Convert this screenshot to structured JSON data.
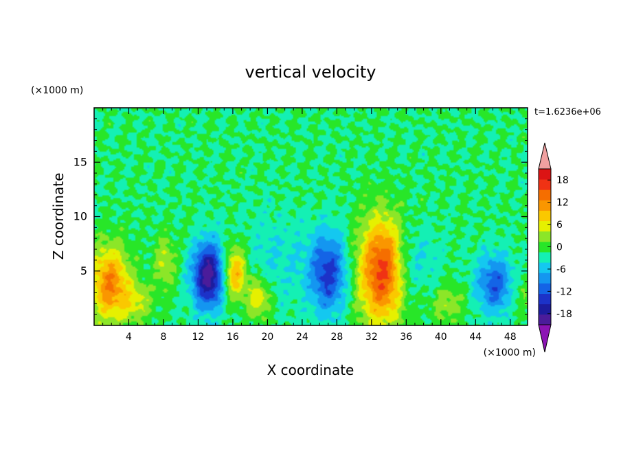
{
  "chart_data": {
    "type": "heatmap",
    "title": "vertical velocity",
    "xlabel": "X coordinate",
    "ylabel": "Z coordinate",
    "x_unit": "(×1000 m)",
    "y_unit": "(×1000 m)",
    "time_label": "t=1.6236e+06",
    "xlim": [
      0,
      50
    ],
    "ylim": [
      0,
      20
    ],
    "x_ticks": [
      4,
      8,
      12,
      16,
      20,
      24,
      28,
      32,
      36,
      40,
      44,
      48
    ],
    "x_tick_labels": [
      "4",
      "8",
      "12",
      "16",
      "20",
      "24",
      "28",
      "32",
      "36",
      "40",
      "44",
      "48"
    ],
    "y_ticks": [
      5,
      10,
      15
    ],
    "y_tick_labels": [
      "5",
      "10",
      "15"
    ],
    "colorbar": {
      "levels": [
        -21,
        -18,
        -15,
        -12,
        -9,
        -6,
        -3,
        0,
        3,
        6,
        9,
        12,
        15,
        18,
        21
      ],
      "tick_values": [
        -18,
        -12,
        -6,
        0,
        6,
        12,
        18
      ],
      "tick_labels": [
        "-18",
        "-12",
        "-6",
        "0",
        "6",
        "12",
        "18"
      ],
      "colors": [
        "#4b1c9a",
        "#1c1c9e",
        "#1c32c8",
        "#1464e6",
        "#1496f0",
        "#14c8f0",
        "#14f0b4",
        "#28e628",
        "#8ce628",
        "#e6f000",
        "#fac800",
        "#fa9600",
        "#f56e00",
        "#f03214",
        "#dc1414"
      ],
      "under_color": "#8c14b4",
      "over_color": "#f0a0a0"
    },
    "features": [
      {
        "x": 1.8,
        "z": 3.8,
        "sx": 1.6,
        "sz": 2.4,
        "amp": 15
      },
      {
        "x": 5.0,
        "z": 2.2,
        "sx": 1.3,
        "sz": 1.2,
        "amp": 6
      },
      {
        "x": 8.2,
        "z": 5.8,
        "sx": 0.9,
        "sz": 1.7,
        "amp": 6
      },
      {
        "x": 13.2,
        "z": 4.6,
        "sx": 1.3,
        "sz": 2.1,
        "amp": -20
      },
      {
        "x": 16.2,
        "z": 4.8,
        "sx": 1.0,
        "sz": 1.7,
        "amp": 13
      },
      {
        "x": 19.0,
        "z": 2.5,
        "sx": 1.0,
        "sz": 1.3,
        "amp": 9
      },
      {
        "x": 21.0,
        "z": 6.0,
        "sx": 3.0,
        "sz": 3.0,
        "amp": -3
      },
      {
        "x": 27.0,
        "z": 4.8,
        "sx": 1.5,
        "sz": 2.6,
        "amp": -13
      },
      {
        "x": 33.2,
        "z": 5.0,
        "sx": 1.9,
        "sz": 3.4,
        "amp": 19
      },
      {
        "x": 36.0,
        "z": 5.5,
        "sx": 1.0,
        "sz": 2.5,
        "amp": -4
      },
      {
        "x": 40.8,
        "z": 2.0,
        "sx": 1.4,
        "sz": 1.3,
        "amp": 5
      },
      {
        "x": 38.0,
        "z": 6.0,
        "sx": 1.5,
        "sz": 2.0,
        "amp": -3
      },
      {
        "x": 46.2,
        "z": 3.8,
        "sx": 1.5,
        "sz": 1.9,
        "amp": -11
      },
      {
        "x": 49.3,
        "z": 3.0,
        "sx": 0.9,
        "sz": 1.5,
        "amp": 3
      }
    ]
  }
}
